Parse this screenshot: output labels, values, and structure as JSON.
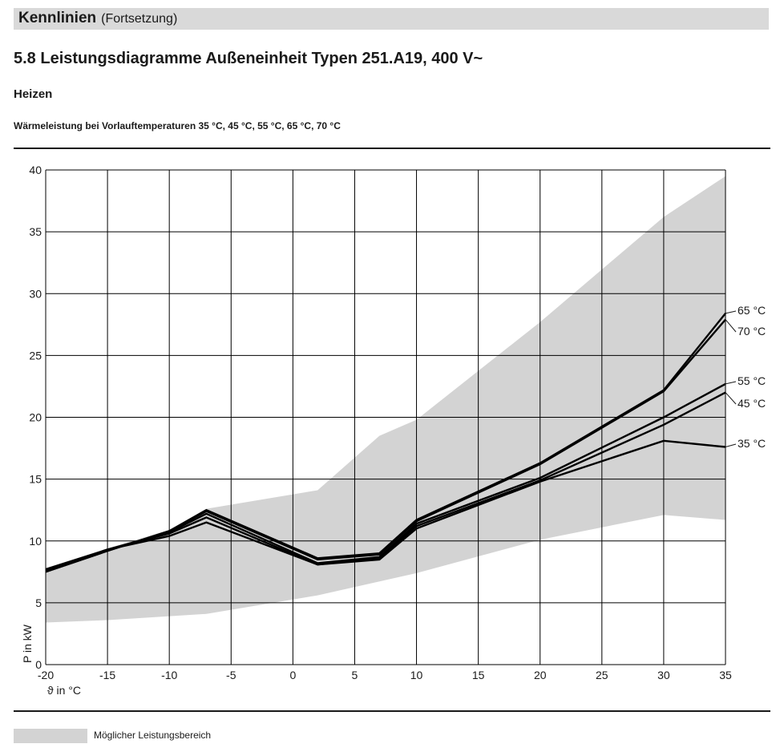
{
  "header": {
    "title": "Kennlinien",
    "subtitle": "(Fortsetzung)"
  },
  "section_title": "5.8 Leistungsdiagramme Außeneinheit Typen 251.A19, 400 V~",
  "sub_heading": "Heizen",
  "caption": "Wärmeleistung bei Vorlauftemperaturen 35 °C, 45 °C, 55 °C, 65 °C, 70 °C",
  "legend": {
    "label": "Möglicher Leistungsbereich",
    "color": "#d3d3d3"
  },
  "chart_data": {
    "type": "line",
    "xlabel": "ϑ in °C",
    "ylabel": "P in kW",
    "xlim": [
      -20,
      35
    ],
    "ylim": [
      0,
      40
    ],
    "xticks": [
      -20,
      -15,
      -10,
      -5,
      0,
      5,
      10,
      15,
      20,
      25,
      30,
      35
    ],
    "yticks": [
      0,
      5,
      10,
      15,
      20,
      25,
      30,
      35,
      40
    ],
    "grid": true,
    "range_band": {
      "name": "Möglicher Leistungsbereich",
      "color": "#d3d3d3",
      "upper": [
        [
          -20,
          7.8
        ],
        [
          -15,
          9.4
        ],
        [
          -10,
          10.9
        ],
        [
          -7,
          12.6
        ],
        [
          2,
          14.1
        ],
        [
          7,
          18.5
        ],
        [
          10,
          19.8
        ],
        [
          20,
          27.7
        ],
        [
          30,
          36.2
        ],
        [
          35,
          39.5
        ]
      ],
      "lower": [
        [
          -20,
          3.4
        ],
        [
          -15,
          3.6
        ],
        [
          -7,
          4.1
        ],
        [
          2,
          5.6
        ],
        [
          10,
          7.4
        ],
        [
          20,
          10.1
        ],
        [
          30,
          12.1
        ],
        [
          35,
          11.7
        ]
      ]
    },
    "series": [
      {
        "name": "35 °C",
        "color": "#000000",
        "points": [
          [
            -20,
            7.6
          ],
          [
            -15,
            9.3
          ],
          [
            -10,
            10.4
          ],
          [
            -7,
            11.5
          ],
          [
            2,
            8.1
          ],
          [
            7,
            8.5
          ],
          [
            10,
            11.0
          ],
          [
            20,
            14.8
          ],
          [
            30,
            18.1
          ],
          [
            35,
            17.6
          ]
        ]
      },
      {
        "name": "45 °C",
        "color": "#000000",
        "points": [
          [
            -20,
            7.6
          ],
          [
            -15,
            9.3
          ],
          [
            -10,
            10.6
          ],
          [
            -7,
            11.9
          ],
          [
            2,
            8.1
          ],
          [
            7,
            8.6
          ],
          [
            10,
            11.2
          ],
          [
            20,
            14.9
          ],
          [
            30,
            19.4
          ],
          [
            35,
            22.0
          ]
        ]
      },
      {
        "name": "55 °C",
        "color": "#000000",
        "points": [
          [
            -20,
            7.7
          ],
          [
            -15,
            9.3
          ],
          [
            -10,
            10.7
          ],
          [
            -7,
            12.2
          ],
          [
            2,
            8.2
          ],
          [
            7,
            8.7
          ],
          [
            10,
            11.4
          ],
          [
            20,
            15.1
          ],
          [
            30,
            20.0
          ],
          [
            35,
            22.7
          ]
        ]
      },
      {
        "name": "65 °C",
        "color": "#000000",
        "points": [
          [
            -20,
            7.5
          ],
          [
            -15,
            9.2
          ],
          [
            -10,
            10.8
          ],
          [
            -7,
            12.5
          ],
          [
            2,
            8.6
          ],
          [
            7,
            9.0
          ],
          [
            10,
            11.7
          ],
          [
            20,
            16.3
          ],
          [
            30,
            22.2
          ],
          [
            35,
            28.4
          ]
        ]
      },
      {
        "name": "70 °C",
        "color": "#000000",
        "points": [
          [
            -20,
            7.5
          ],
          [
            -15,
            9.2
          ],
          [
            -10,
            10.8
          ],
          [
            -7,
            12.4
          ],
          [
            2,
            8.5
          ],
          [
            7,
            8.9
          ],
          [
            10,
            11.6
          ],
          [
            20,
            16.2
          ],
          [
            30,
            22.1
          ],
          [
            35,
            27.9
          ]
        ]
      }
    ],
    "end_labels": [
      "65 °C",
      "70 °C",
      "55 °C",
      "45 °C",
      "35 °C"
    ]
  }
}
